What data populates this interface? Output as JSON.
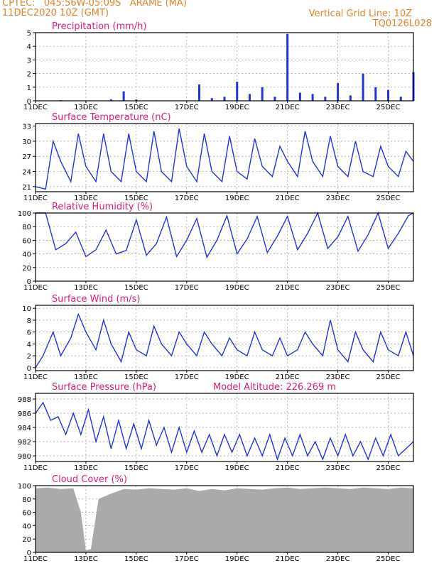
{
  "header": {
    "line1": "CPTEC:   045:56W-05:09S   ARAME (MA)",
    "line2": "11DEC2020 10Z (GMT)",
    "grid_note": "Vertical Grid Line: 10Z",
    "run_code": "TQ0126L028"
  },
  "colors": {
    "header": "#e0832a",
    "title": "#e0197f",
    "line": "#2233dd",
    "cloud": "#aaaaaa"
  },
  "x_ticks": [
    "11DEC",
    "13DEC",
    "15DEC",
    "17DEC",
    "19DEC",
    "21DEC",
    "23DEC",
    "25DEC"
  ],
  "chart_data": [
    {
      "type": "bar",
      "title": "Precipitation (mm/h)",
      "ylim": [
        0,
        5
      ],
      "yticks": [
        "0",
        "1",
        "2",
        "3",
        "4",
        "5"
      ],
      "x_days": [
        0,
        0.5,
        1,
        1.5,
        2,
        2.5,
        3,
        3.5,
        4,
        4.5,
        5,
        5.5,
        6,
        6.5,
        7,
        7.5,
        8,
        8.5,
        9,
        9.5,
        10,
        10.5,
        11,
        11.5,
        12,
        12.5,
        13,
        13.5,
        14,
        14.5,
        15
      ],
      "values": [
        0,
        0,
        0.05,
        0,
        0,
        0,
        0.1,
        0.7,
        0.1,
        0,
        0,
        0,
        0,
        1.2,
        0.2,
        0.3,
        1.4,
        0.5,
        1.0,
        0.3,
        4.9,
        0.6,
        0.5,
        0.3,
        1.3,
        0.4,
        2.0,
        1.0,
        0.8,
        0.3,
        2.1
      ]
    },
    {
      "type": "line",
      "title": "Surface Temperature (nC)",
      "ylim": [
        20,
        33.5
      ],
      "yticks": [
        "21",
        "24",
        "27",
        "30",
        "33"
      ],
      "x_days": [
        0,
        0.4,
        0.7,
        1.0,
        1.4,
        1.7,
        2.0,
        2.4,
        2.7,
        3.0,
        3.4,
        3.7,
        4.0,
        4.4,
        4.7,
        5.0,
        5.4,
        5.7,
        6.0,
        6.4,
        6.7,
        7.0,
        7.4,
        7.7,
        8.0,
        8.4,
        8.7,
        9.0,
        9.4,
        9.7,
        10.0,
        10.4,
        10.7,
        11.0,
        11.4,
        11.7,
        12.0,
        12.4,
        12.7,
        13.0,
        13.4,
        13.7,
        14.0,
        14.4,
        14.7,
        15.0
      ],
      "values": [
        21,
        20.5,
        30,
        26,
        22,
        31.5,
        25,
        22,
        31.5,
        24,
        22,
        31.5,
        24,
        22,
        32,
        24,
        22,
        32.5,
        25,
        22,
        31.5,
        24,
        22,
        31,
        24,
        22.5,
        30.5,
        25,
        23,
        29,
        26,
        23,
        32,
        26,
        23,
        31,
        25,
        23,
        30,
        24,
        23,
        29,
        25,
        23,
        28,
        26
      ]
    },
    {
      "type": "line",
      "title": "Relative Humidity (%)",
      "ylim": [
        0,
        100
      ],
      "yticks": [
        "0",
        "20",
        "40",
        "60",
        "80",
        "100"
      ],
      "x_days": [
        0,
        0.4,
        0.8,
        1.2,
        1.6,
        2.0,
        2.4,
        2.8,
        3.2,
        3.6,
        4.0,
        4.4,
        4.8,
        5.2,
        5.6,
        6.0,
        6.4,
        6.8,
        7.2,
        7.6,
        8.0,
        8.4,
        8.8,
        9.2,
        9.6,
        10.0,
        10.4,
        10.8,
        11.2,
        11.6,
        12.0,
        12.4,
        12.8,
        13.2,
        13.6,
        14.0,
        14.4,
        14.8,
        15.0
      ],
      "values": [
        100,
        100,
        46,
        55,
        72,
        36,
        46,
        75,
        40,
        45,
        90,
        38,
        55,
        94,
        36,
        60,
        92,
        35,
        60,
        96,
        40,
        62,
        95,
        42,
        66,
        95,
        46,
        70,
        100,
        48,
        65,
        95,
        44,
        68,
        100,
        48,
        70,
        96,
        100
      ]
    },
    {
      "type": "line",
      "title": "Surface Wind (m/s)",
      "ylim": [
        -0.5,
        10.5
      ],
      "yticks": [
        "0",
        "2",
        "4",
        "6",
        "8",
        "10"
      ],
      "x_days": [
        0,
        0.3,
        0.7,
        1.0,
        1.4,
        1.7,
        2.0,
        2.4,
        2.7,
        3.0,
        3.4,
        3.7,
        4.0,
        4.4,
        4.7,
        5.0,
        5.4,
        5.7,
        6.0,
        6.4,
        6.7,
        7.0,
        7.4,
        7.7,
        8.0,
        8.4,
        8.7,
        9.0,
        9.4,
        9.7,
        10.0,
        10.4,
        10.7,
        11.0,
        11.4,
        11.7,
        12.0,
        12.4,
        12.7,
        13.0,
        13.4,
        13.7,
        14.0,
        14.4,
        14.7,
        15.0
      ],
      "values": [
        0,
        2,
        6,
        2,
        5,
        9,
        6,
        3,
        8,
        4,
        1,
        6,
        3,
        2,
        7,
        4,
        2,
        6,
        4,
        2,
        6,
        4,
        2,
        5,
        3,
        2,
        6,
        3,
        2,
        5,
        2,
        3,
        6,
        4,
        2,
        8,
        3,
        1,
        6,
        3,
        1,
        6,
        3,
        2,
        6,
        2
      ]
    },
    {
      "type": "line",
      "title": "Surface Pressure (hPa)",
      "subtitle": "Model Altitude: 226.269  m",
      "ylim": [
        979.2,
        988.8
      ],
      "yticks": [
        "980",
        "982",
        "984",
        "986",
        "988"
      ],
      "x_days": [
        0,
        0.3,
        0.6,
        0.9,
        1.2,
        1.5,
        1.8,
        2.1,
        2.4,
        2.7,
        3.0,
        3.3,
        3.6,
        3.9,
        4.2,
        4.5,
        4.8,
        5.1,
        5.4,
        5.7,
        6.0,
        6.3,
        6.6,
        6.9,
        7.2,
        7.5,
        7.8,
        8.1,
        8.4,
        8.7,
        9.0,
        9.3,
        9.6,
        9.9,
        10.2,
        10.5,
        10.8,
        11.1,
        11.4,
        11.7,
        12.0,
        12.3,
        12.6,
        12.9,
        13.2,
        13.5,
        13.8,
        14.1,
        14.4,
        14.7,
        15.0
      ],
      "values": [
        986,
        987.5,
        985,
        985.5,
        983,
        986,
        983,
        986.5,
        982,
        985.5,
        981,
        985,
        981,
        984.5,
        981,
        985,
        981.5,
        984,
        980.5,
        984,
        980.5,
        983.5,
        980.5,
        983,
        980,
        983,
        980.5,
        983,
        980,
        982.5,
        980,
        983,
        979.5,
        982.5,
        980,
        983,
        980,
        982,
        979.5,
        982.5,
        980,
        983,
        980,
        982,
        979.5,
        982.5,
        980,
        983,
        980,
        981,
        982
      ]
    },
    {
      "type": "area",
      "title": "Cloud Cover (%)",
      "ylim": [
        0,
        100
      ],
      "yticks": [
        "0",
        "20",
        "40",
        "60",
        "80",
        "100"
      ],
      "x_days": [
        0,
        0.5,
        1,
        1.5,
        1.8,
        2.0,
        2.2,
        2.5,
        3,
        3.5,
        4,
        4.5,
        5,
        5.5,
        6,
        6.5,
        7,
        7.5,
        8,
        8.5,
        9,
        9.5,
        10,
        10.5,
        11,
        11.5,
        12,
        12.5,
        13,
        13.5,
        14,
        14.5,
        15
      ],
      "values": [
        96,
        97,
        95,
        96,
        60,
        3,
        5,
        80,
        88,
        95,
        94,
        96,
        95,
        94,
        96,
        92,
        95,
        93,
        96,
        95,
        94,
        96,
        97,
        95,
        96,
        97,
        96,
        95,
        97,
        96,
        95,
        97,
        96
      ]
    }
  ]
}
